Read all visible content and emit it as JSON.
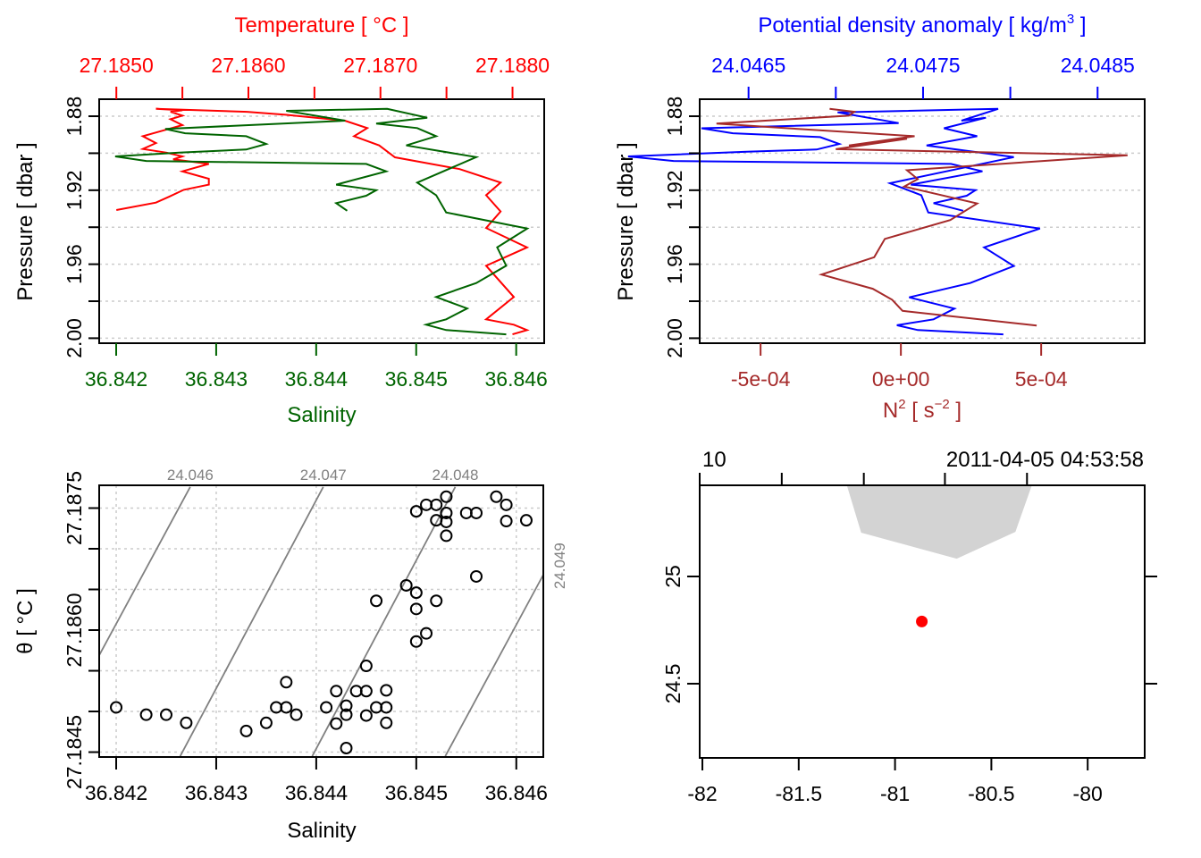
{
  "colors": {
    "temperature": "#ff0000",
    "salinity": "#006400",
    "density": "#0000ff",
    "n2": "#a52a2a",
    "isopycnal": "#808080",
    "land": "#d3d3d3",
    "station": "#ff0000",
    "grid": "#cccccc"
  },
  "chart_data": [
    {
      "id": "ts_profile",
      "type": "line",
      "title": "Temperature [ °C ]",
      "top_axis": {
        "label": "Temperature [ °C ]",
        "range": [
          27.18487,
          27.18824
        ],
        "ticks": [
          27.185,
          27.1855,
          27.186,
          27.1865,
          27.187,
          27.1875,
          27.188
        ],
        "tick_labels": [
          "27.1850",
          "",
          "27.1860",
          "",
          "27.1870",
          "",
          "27.1880"
        ]
      },
      "bottom_axis": {
        "label": "Salinity",
        "range": [
          36.84183,
          36.84628
        ],
        "ticks": [
          36.842,
          36.843,
          36.844,
          36.845,
          36.846
        ],
        "tick_labels": [
          "36.842",
          "36.843",
          "36.844",
          "36.845",
          "36.846"
        ]
      },
      "y_axis": {
        "label": "Pressure [ dbar ]",
        "range": [
          1.8708,
          2.0027
        ],
        "reversed": true,
        "ticks": [
          1.88,
          1.9,
          1.92,
          1.94,
          1.96,
          1.98,
          2.0
        ],
        "tick_labels": [
          "1.88",
          "",
          "1.92",
          "",
          "1.96",
          "",
          "2.00"
        ]
      },
      "grid": true,
      "series": [
        {
          "name": "Temperature",
          "axis": "top",
          "color_key": "temperature",
          "x": [
            27.185,
            27.1853,
            27.1854,
            27.18551,
            27.1857,
            27.1857,
            27.1855,
            27.1857,
            27.18543,
            27.1855,
            27.18538,
            27.1852,
            27.1853,
            27.1852,
            27.18538,
            27.1855,
            27.18541,
            27.1855,
            27.18541,
            27.1855,
            27.1853,
            27.18599,
            27.18628,
            27.18673,
            27.1869,
            27.1868,
            27.18699,
            27.18711,
            27.1876,
            27.18791,
            27.1878,
            27.18791,
            27.1878,
            27.18811,
            27.1878,
            27.18801,
            27.1878,
            27.18801,
            27.18811,
            27.188
          ],
          "p": [
            1.9307,
            1.9267,
            1.9235,
            1.9198,
            1.917,
            1.9138,
            1.9098,
            1.9058,
            1.9033,
            1.9017,
            1.8997,
            1.8977,
            1.8945,
            1.8908,
            1.8872,
            1.8848,
            1.8816,
            1.8797,
            1.8776,
            1.8768,
            1.876,
            1.8776,
            1.8792,
            1.8824,
            1.8864,
            1.8908,
            1.8958,
            1.9022,
            1.9086,
            1.9159,
            1.9227,
            1.9315,
            1.9404,
            1.9509,
            1.9608,
            1.9777,
            1.9898,
            1.9927,
            1.9956,
            1.9979
          ]
        },
        {
          "name": "Salinity",
          "axis": "bottom",
          "color_key": "salinity",
          "x": [
            36.84431,
            36.8442,
            36.8445,
            36.8446,
            36.8442,
            36.8447,
            36.8445,
            36.8423,
            36.84199,
            36.84263,
            36.8433,
            36.8435,
            36.8433,
            36.84269,
            36.84249,
            36.84429,
            36.8437,
            36.84471,
            36.84511,
            36.8446,
            36.84501,
            36.8452,
            36.8449,
            36.8456,
            36.84501,
            36.8452,
            36.8453,
            36.84611,
            36.84581,
            36.8459,
            36.8456,
            36.8452,
            36.84551,
            36.8453,
            36.8451,
            36.8453,
            36.8459
          ],
          "p": [
            1.9311,
            1.927,
            1.923,
            1.92,
            1.917,
            1.9098,
            1.9058,
            1.9042,
            1.9017,
            1.8997,
            1.898,
            1.895,
            1.8908,
            1.8892,
            1.8869,
            1.8824,
            1.8771,
            1.876,
            1.8808,
            1.884,
            1.8864,
            1.8908,
            1.8958,
            1.9021,
            1.9159,
            1.9227,
            1.932,
            1.9407,
            1.9509,
            1.9608,
            1.9702,
            1.9777,
            1.9839,
            1.9898,
            1.9927,
            1.9956,
            1.9979
          ]
        }
      ]
    },
    {
      "id": "density_n2_profile",
      "type": "line",
      "title": "Potential density anomaly [ kg/m³ ]",
      "top_axis": {
        "label": "Potential density anomaly [ kg/m",
        "label_sup": "3",
        "label_end": " ]",
        "range": [
          24.04622,
          24.04877
        ],
        "ticks": [
          24.0465,
          24.047,
          24.0475,
          24.048,
          24.0485
        ],
        "tick_labels": [
          "24.0465",
          "",
          "24.0475",
          "",
          "24.0485"
        ]
      },
      "bottom_axis": {
        "label": "N",
        "label_sup": "2",
        "label_mid": " [ s",
        "label_sup2": "−2",
        "label_end": " ]",
        "range": [
          -0.000717,
          0.000869
        ],
        "ticks": [
          -0.0005,
          0,
          0.0005
        ],
        "tick_labels": [
          "-5e-04",
          "0e+00",
          "5e-04"
        ]
      },
      "y_axis": {
        "label": "Pressure [ dbar ]",
        "range": [
          1.8708,
          2.0027
        ],
        "reversed": true,
        "ticks": [
          1.88,
          1.9,
          1.92,
          1.94,
          1.96,
          1.98,
          2.0
        ],
        "tick_labels": [
          "1.88",
          "",
          "1.92",
          "",
          "1.96",
          "",
          "2.00"
        ]
      },
      "grid": true,
      "series": [
        {
          "name": "Potential density anomaly",
          "axis": "top",
          "color_key": "density",
          "x": [
            24.04773,
            24.04756,
            24.04775,
            24.0478,
            24.04743,
            24.04784,
            24.04766,
            24.04607,
            24.04581,
            24.04649,
            24.04689,
            24.04702,
            24.04691,
            24.04641,
            24.04623,
            24.04736,
            24.04701,
            24.04793,
            24.04772,
            24.04786,
            24.04762,
            24.04781,
            24.04752,
            24.04802,
            24.04731,
            24.04749,
            24.04753,
            24.04817,
            24.04785,
            24.04802,
            24.04777,
            24.04742,
            24.04768,
            24.04756,
            24.04735,
            24.04747,
            24.04796
          ],
          "p": [
            1.9311,
            1.927,
            1.923,
            1.92,
            1.917,
            1.9098,
            1.9058,
            1.9042,
            1.9017,
            1.8992,
            1.898,
            1.895,
            1.8913,
            1.8892,
            1.8865,
            1.8837,
            1.8779,
            1.876,
            1.8824,
            1.8808,
            1.8865,
            1.8908,
            1.8958,
            1.9021,
            1.9162,
            1.9227,
            1.932,
            1.9407,
            1.9509,
            1.961,
            1.9702,
            1.9779,
            1.984,
            1.9898,
            1.993,
            1.9956,
            1.9979
          ]
        },
        {
          "name": "N2",
          "axis": "bottom",
          "color_key": "n2",
          "x": [
            -0.000254,
            -0.000166,
            -0.000185,
            -0.000657,
            -0.000402,
            4.9e-05,
            -0.000185,
            2.2e-05,
            -0.000232,
            0.000808,
            2.2e-05,
            6e-05,
            1.2e-05,
            0.000272,
            0.000176,
            -5.7e-05,
            -9.5e-05,
            -0.000283,
            -0.0001,
            -3.1e-05,
            6e-06,
            0.000484
          ],
          "p": [
            1.876,
            1.8776,
            1.8797,
            1.884,
            1.8865,
            1.8908,
            1.8958,
            1.8922,
            1.8978,
            1.9011,
            1.9092,
            1.914,
            1.918,
            1.9272,
            1.9361,
            1.9463,
            1.9562,
            1.9656,
            1.9733,
            1.9792,
            1.9852,
            1.9932
          ]
        }
      ]
    },
    {
      "id": "ts_diagram",
      "type": "scatter",
      "xlabel": "Salinity",
      "ylabel": "θ [ °C ]",
      "x_range": [
        36.84183,
        36.84627
      ],
      "y_range": [
        27.18444,
        27.18778
      ],
      "x_ticks": [
        36.842,
        36.843,
        36.844,
        36.845,
        36.846
      ],
      "x_tick_labels": [
        "36.842",
        "36.843",
        "36.844",
        "36.845",
        "36.846"
      ],
      "y_ticks": [
        27.1845,
        27.185,
        27.1855,
        27.186,
        27.1865,
        27.187,
        27.1875
      ],
      "y_tick_labels": [
        "27.1845",
        "",
        "",
        "27.1860",
        "",
        "",
        "27.1875"
      ],
      "grid": true,
      "isopycnals": [
        {
          "label": "24.046",
          "from": [
            36.84183,
            27.18569
          ],
          "to": [
            36.84274,
            27.18776
          ],
          "label_pos": "top"
        },
        {
          "label": "24.047",
          "from": [
            36.84264,
            27.18445
          ],
          "to": [
            36.84407,
            27.18776
          ],
          "label_pos": "top"
        },
        {
          "label": "24.048",
          "from": [
            36.84396,
            27.18445
          ],
          "to": [
            36.84539,
            27.18776
          ],
          "label_pos": "top"
        },
        {
          "label": "24.049",
          "from": [
            36.84529,
            27.18445
          ],
          "to": [
            36.84627,
            27.18668
          ],
          "label_pos": "right"
        }
      ],
      "points": {
        "salinity": [
          36.842,
          36.8423,
          36.8425,
          36.8427,
          36.8433,
          36.8435,
          36.8436,
          36.8437,
          36.8437,
          36.8438,
          36.8441,
          36.8442,
          36.8442,
          36.8443,
          36.8443,
          36.8443,
          36.8444,
          36.8445,
          36.8445,
          36.8445,
          36.8446,
          36.8447,
          36.8447,
          36.8447,
          36.8446,
          36.8449,
          36.845,
          36.845,
          36.8452,
          36.8451,
          36.845,
          36.8456,
          36.845,
          36.8451,
          36.8452,
          36.8453,
          36.8453,
          36.8452,
          36.8453,
          36.8453,
          36.8455,
          36.8456,
          36.8458,
          36.8459,
          36.8459,
          36.8461
        ],
        "theta": [
          27.18505,
          27.18496,
          27.18496,
          27.18486,
          27.18476,
          27.18486,
          27.18505,
          27.18505,
          27.18536,
          27.18496,
          27.18505,
          27.18525,
          27.18485,
          27.18507,
          27.18496,
          27.18455,
          27.18525,
          27.18525,
          27.18556,
          27.18495,
          27.18505,
          27.18526,
          27.18505,
          27.18486,
          27.18636,
          27.18655,
          27.18646,
          27.18626,
          27.18636,
          27.18596,
          27.18586,
          27.18666,
          27.18746,
          27.18754,
          27.18754,
          27.18764,
          27.18744,
          27.18735,
          27.18733,
          27.18716,
          27.18744,
          27.18744,
          27.18764,
          27.18754,
          27.18734,
          27.18735
        ]
      }
    },
    {
      "id": "station_map",
      "type": "scatter",
      "x_range": [
        -82.014,
        -79.704
      ],
      "y_range": [
        24.154,
        25.425
      ],
      "x_ticks": [
        -82,
        -81.5,
        -81,
        -80.5,
        -80
      ],
      "x_tick_labels": [
        "-82",
        "-81.5",
        "-81",
        "-80.5",
        "-80"
      ],
      "y_ticks": [
        24.5,
        25
      ],
      "y_tick_labels": [
        "24.5",
        "25"
      ],
      "top_labels": {
        "left": "10",
        "right": "2011-04-05 04:53:58"
      },
      "top_ticks": [
        -82.014,
        -81.588,
        -81.162,
        -80.741,
        -80.315
      ],
      "land_polygon": {
        "lon": [
          -81.25,
          -81.176,
          -80.68,
          -80.375,
          -80.29
        ],
        "lat": [
          25.425,
          25.204,
          25.083,
          25.208,
          25.425
        ]
      },
      "station": {
        "lon": -80.861,
        "lat": 24.79
      }
    }
  ]
}
